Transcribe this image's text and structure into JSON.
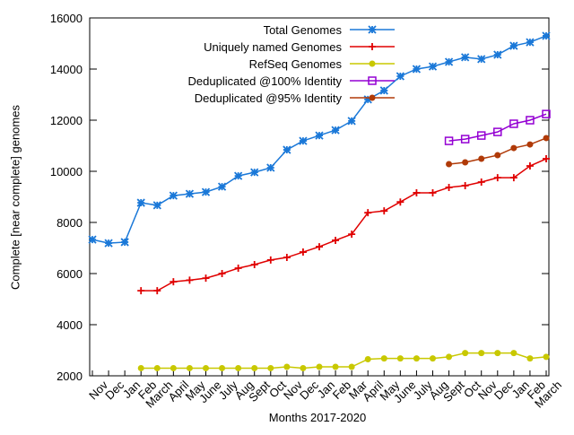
{
  "chart_data": {
    "type": "line",
    "x_label": "Months 2017-2020",
    "y_label": "Complete [near complete] genomes",
    "categories": [
      "Nov",
      "Dec",
      "Jan",
      "Feb",
      "March",
      "April",
      "May",
      "June",
      "July",
      "Aug",
      "Sept",
      "Oct",
      "Nov",
      "Dec",
      "Jan",
      "Feb",
      "Mar",
      "April",
      "May",
      "June",
      "July",
      "Aug",
      "Sept",
      "Oct",
      "Nov",
      "Dec",
      "Jan",
      "Feb",
      "March"
    ],
    "ylim": [
      2000,
      16000
    ],
    "yticks": [
      2000,
      4000,
      6000,
      8000,
      10000,
      12000,
      14000,
      16000
    ],
    "legend": "top-right",
    "series": [
      {
        "name": "Total Genomes",
        "color": "#1a78d8",
        "marker": "star",
        "values": [
          7330,
          7190,
          7230,
          8770,
          8670,
          9050,
          9120,
          9190,
          9400,
          9820,
          9960,
          10140,
          10840,
          11190,
          11400,
          11610,
          11970,
          12810,
          13160,
          13720,
          14000,
          14100,
          14280,
          14460,
          14390,
          14560,
          14910,
          15050,
          15300
        ]
      },
      {
        "name": "Uniquely named Genomes",
        "color": "#e00000",
        "marker": "plus",
        "values": [
          null,
          null,
          null,
          5330,
          5330,
          5680,
          5740,
          5820,
          6000,
          6210,
          6350,
          6530,
          6630,
          6840,
          7050,
          7300,
          7540,
          8380,
          8450,
          8800,
          9160,
          9160,
          9370,
          9440,
          9580,
          9750,
          9750,
          10210,
          10490
        ]
      },
      {
        "name": "RefSeq Genomes",
        "color": "#c8c800",
        "marker": "dot",
        "values": [
          null,
          null,
          null,
          2300,
          2300,
          2300,
          2300,
          2300,
          2300,
          2300,
          2300,
          2300,
          2350,
          2300,
          2350,
          2350,
          2350,
          2650,
          2680,
          2680,
          2680,
          2680,
          2740,
          2890,
          2890,
          2890,
          2890,
          2680,
          2740
        ]
      },
      {
        "name": "Deduplicated @100% Identity",
        "color": "#9400d3",
        "marker": "square",
        "values": [
          null,
          null,
          null,
          null,
          null,
          null,
          null,
          null,
          null,
          null,
          null,
          null,
          null,
          null,
          null,
          null,
          null,
          null,
          null,
          null,
          null,
          null,
          11190,
          11260,
          11400,
          11540,
          11860,
          12000,
          12240
        ]
      },
      {
        "name": "Deduplicated @95% Identity",
        "color": "#b03a08",
        "marker": "dot",
        "values": [
          null,
          null,
          null,
          null,
          null,
          null,
          null,
          null,
          null,
          null,
          null,
          null,
          null,
          null,
          null,
          null,
          null,
          null,
          null,
          null,
          null,
          null,
          10280,
          10350,
          10490,
          10630,
          10910,
          11050,
          11300
        ]
      }
    ]
  }
}
